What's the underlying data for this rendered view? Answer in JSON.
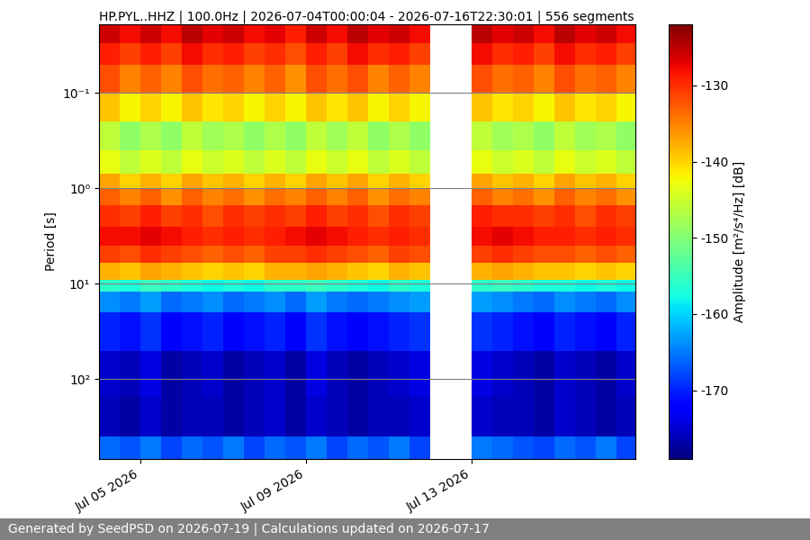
{
  "chart_data": {
    "type": "heatmap",
    "title": "HP.PYL..HHZ | 100.0Hz | 2026-07-04T00:00:04 - 2026-07-16T22:30:01 | 556 segments",
    "y_label": "Period [s]",
    "log": "y",
    "grid": true,
    "x_edges": [
      "2026-07-04T00:00:04",
      "2026-07-04T12:00:00",
      "2026-07-05T00:00:00",
      "2026-07-05T12:00:00",
      "2026-07-06T00:00:00",
      "2026-07-06T12:00:00",
      "2026-07-07T00:00:00",
      "2026-07-07T12:00:00",
      "2026-07-08T00:00:00",
      "2026-07-08T12:00:00",
      "2026-07-09T00:00:00",
      "2026-07-09T12:00:00",
      "2026-07-10T00:00:00",
      "2026-07-10T12:00:00",
      "2026-07-11T00:00:00",
      "2026-07-11T12:00:00",
      "2026-07-12T00:00:00",
      "2026-07-12T12:00:00",
      "2026-07-13T00:00:00",
      "2026-07-13T12:00:00",
      "2026-07-14T00:00:00",
      "2026-07-14T12:00:00",
      "2026-07-15T00:00:00",
      "2026-07-15T12:00:00",
      "2026-07-16T00:00:00",
      "2026-07-16T12:00:00",
      "2026-07-16T22:30:01"
    ],
    "y_edges": [
      0.019,
      0.03,
      0.05,
      0.1,
      0.2,
      0.4,
      0.7,
      1.0,
      1.5,
      2.5,
      4,
      6,
      9,
      12,
      20,
      50,
      150,
      400,
      684
    ],
    "cells": [
      [
        -126,
        -128,
        -126,
        -128,
        -125,
        -127,
        -126,
        -128,
        -127,
        -129,
        -126,
        -128,
        -125,
        -127,
        -126,
        -128,
        null,
        null,
        -125,
        -127,
        -126,
        -128,
        -125,
        -127,
        -126,
        -128
      ],
      [
        -129,
        -131,
        -129,
        -131,
        -128,
        -130,
        -129,
        -131,
        -130,
        -132,
        -129,
        -131,
        -128,
        -130,
        -129,
        -131,
        null,
        null,
        -128,
        -130,
        -129,
        -131,
        -128,
        -130,
        -129,
        -131
      ],
      [
        -132,
        -135,
        -133,
        -135,
        -132,
        -134,
        -133,
        -135,
        -133,
        -136,
        -132,
        -134,
        -132,
        -135,
        -133,
        -135,
        null,
        null,
        -132,
        -134,
        -133,
        -135,
        -132,
        -134,
        -133,
        -135
      ],
      [
        -139,
        -142,
        -140,
        -142,
        -139,
        -141,
        -140,
        -142,
        -140,
        -142,
        -139,
        -141,
        -139,
        -142,
        -140,
        -142,
        null,
        null,
        -139,
        -141,
        -140,
        -142,
        -139,
        -141,
        -140,
        -142
      ],
      [
        -146,
        -149,
        -147,
        -149,
        -146,
        -148,
        -147,
        -149,
        -147,
        -149,
        -146,
        -148,
        -146,
        -149,
        -147,
        -149,
        null,
        null,
        -146,
        -148,
        -147,
        -149,
        -146,
        -148,
        -147,
        -149
      ],
      [
        -143,
        -146,
        -144,
        -146,
        -143,
        -145,
        -144,
        -146,
        -144,
        -146,
        -143,
        -145,
        -143,
        -146,
        -144,
        -146,
        null,
        null,
        -143,
        -145,
        -144,
        -146,
        -143,
        -145,
        -144,
        -146
      ],
      [
        -137,
        -140,
        -138,
        -140,
        -137,
        -139,
        -138,
        -140,
        -138,
        -140,
        -137,
        -139,
        -137,
        -140,
        -138,
        -140,
        null,
        null,
        -137,
        -139,
        -138,
        -140,
        -137,
        -139,
        -138,
        -140
      ],
      [
        -133,
        -135,
        -133,
        -136,
        -133,
        -135,
        -134,
        -136,
        -134,
        -135,
        -133,
        -135,
        -133,
        -136,
        -134,
        -135,
        null,
        null,
        -133,
        -135,
        -134,
        -136,
        -133,
        -135,
        -134,
        -136
      ],
      [
        -130,
        -131,
        -129,
        -131,
        -130,
        -132,
        -130,
        -131,
        -130,
        -131,
        -129,
        -131,
        -130,
        -132,
        -130,
        -131,
        null,
        null,
        -129,
        -130,
        -130,
        -131,
        -130,
        -132,
        -130,
        -131
      ],
      [
        -128,
        -128,
        -127,
        -128,
        -129,
        -130,
        -129,
        -130,
        -129,
        -128,
        -127,
        -128,
        -129,
        -130,
        -129,
        -130,
        null,
        null,
        -128,
        -127,
        -128,
        -129,
        -129,
        -130,
        -129,
        -130
      ],
      [
        -131,
        -132,
        -130,
        -131,
        -132,
        -133,
        -132,
        -133,
        -131,
        -131,
        -130,
        -131,
        -132,
        -133,
        -131,
        -132,
        null,
        null,
        -131,
        -130,
        -131,
        -132,
        -132,
        -133,
        -132,
        -133
      ],
      [
        -138,
        -139,
        -137,
        -138,
        -139,
        -140,
        -139,
        -140,
        -138,
        -138,
        -137,
        -138,
        -139,
        -140,
        -138,
        -139,
        null,
        null,
        -138,
        -137,
        -138,
        -139,
        -139,
        -140,
        -139,
        -140
      ],
      [
        -156,
        -157,
        -155,
        -156,
        -157,
        -158,
        -157,
        -158,
        -156,
        -156,
        -155,
        -156,
        -157,
        -158,
        -156,
        -157,
        null,
        null,
        -156,
        -155,
        -156,
        -157,
        -157,
        -158,
        -157,
        -158
      ],
      [
        -164,
        -165,
        -163,
        -166,
        -165,
        -164,
        -166,
        -165,
        -164,
        -166,
        -163,
        -165,
        -166,
        -165,
        -164,
        -163,
        null,
        null,
        -163,
        -164,
        -165,
        -166,
        -164,
        -165,
        -166,
        -164
      ],
      [
        -170,
        -171,
        -169,
        -172,
        -171,
        -170,
        -172,
        -171,
        -170,
        -172,
        -169,
        -171,
        -172,
        -171,
        -170,
        -169,
        null,
        null,
        -169,
        -170,
        -171,
        -172,
        -170,
        -171,
        -172,
        -170
      ],
      [
        -175,
        -176,
        -174,
        -177,
        -176,
        -175,
        -177,
        -176,
        -175,
        -177,
        -174,
        -176,
        -177,
        -176,
        -175,
        -174,
        null,
        null,
        -174,
        -175,
        -176,
        -177,
        -175,
        -176,
        -177,
        -175
      ],
      [
        -176,
        -177,
        -175,
        -177,
        -176,
        -176,
        -177,
        -176,
        -175,
        -177,
        -175,
        -176,
        -177,
        -176,
        -176,
        -175,
        null,
        null,
        -175,
        -176,
        -176,
        -177,
        -175,
        -176,
        -177,
        -176
      ],
      [
        -166,
        -167,
        -165,
        -168,
        -166,
        -167,
        -165,
        -168,
        -166,
        -167,
        -165,
        -168,
        -166,
        -167,
        -165,
        -168,
        null,
        null,
        -165,
        -166,
        -167,
        -168,
        -166,
        -167,
        -165,
        -168
      ]
    ],
    "xlim": [
      "2026-07-04T00:00:04",
      "2026-07-16T22:30:01"
    ],
    "xticks": [
      {
        "value": "2026-07-05T00:00:00",
        "label": "Jul 05 2026"
      },
      {
        "value": "2026-07-09T00:00:00",
        "label": "Jul 09 2026"
      },
      {
        "value": "2026-07-13T00:00:00",
        "label": "Jul 13 2026"
      }
    ],
    "ylim": [
      684,
      0.019
    ],
    "yticks": [
      {
        "value": 0.1,
        "label": "10⁻¹"
      },
      {
        "value": 1,
        "label": "10⁰"
      },
      {
        "value": 10,
        "label": "10¹"
      },
      {
        "value": 100,
        "label": "10²"
      }
    ],
    "colorbar_label": "Amplitude [m²/s⁴/Hz] [dB]",
    "colorbar_range": [
      -179,
      -122
    ],
    "colorbar_ticks": [
      -170,
      -160,
      -150,
      -140,
      -130
    ]
  },
  "footer": "Generated by SeedPSD on 2026-07-19 | Calculations updated on 2026-07-17"
}
